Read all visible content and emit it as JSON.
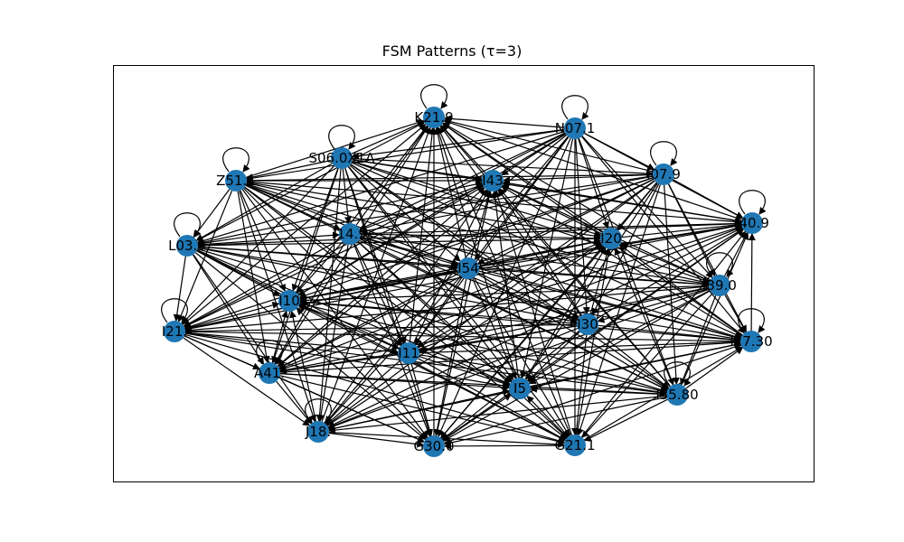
{
  "figure": {
    "title": "FSM Patterns (τ=3)"
  },
  "colors": {
    "node": "#1f77b4",
    "edge": "#000000",
    "frame": "#000000",
    "background": "#ffffff"
  },
  "graph": {
    "type": "directed-graph",
    "nodes": [
      {
        "id": "n1",
        "label": "K21.9"
      },
      {
        "id": "n2",
        "label": "N07.1"
      },
      {
        "id": "n3",
        "label": "S06.0X1A"
      },
      {
        "id": "n4",
        "label": "I43"
      },
      {
        "id": "n5",
        "label": "I07.9"
      },
      {
        "id": "n6",
        "label": "Z51.1"
      },
      {
        "id": "n7",
        "label": "I40.9"
      },
      {
        "id": "n8",
        "label": "L03.9"
      },
      {
        "id": "n9",
        "label": "I14.9"
      },
      {
        "id": "n10",
        "label": "I20"
      },
      {
        "id": "n11",
        "label": "I54"
      },
      {
        "id": "n12",
        "label": "I39.0"
      },
      {
        "id": "n13",
        "label": "I10"
      },
      {
        "id": "n14",
        "label": "I30"
      },
      {
        "id": "n15",
        "label": "I21."
      },
      {
        "id": "n16",
        "label": "I17.30"
      },
      {
        "id": "n17",
        "label": "I11"
      },
      {
        "id": "n18",
        "label": "A41."
      },
      {
        "id": "n19",
        "label": "I5"
      },
      {
        "id": "n20",
        "label": "I35.80"
      },
      {
        "id": "n21",
        "label": "J18."
      },
      {
        "id": "n22",
        "label": "G30.0"
      },
      {
        "id": "n23",
        "label": "G21.1"
      }
    ],
    "self_loops": [
      "n1",
      "n2",
      "n3",
      "n5",
      "n6",
      "n7",
      "n8",
      "n12",
      "n15",
      "n16",
      "n18",
      "n20",
      "n21"
    ],
    "edges_description": "dense directed edges connecting nearly all pairs of nodes"
  }
}
